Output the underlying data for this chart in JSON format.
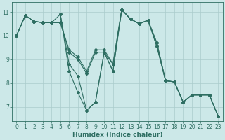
{
  "xlabel": "Humidex (Indice chaleur)",
  "xlim": [
    -0.5,
    23.5
  ],
  "ylim": [
    6.4,
    11.4
  ],
  "yticks": [
    7,
    8,
    9,
    10,
    11
  ],
  "xticks": [
    0,
    1,
    2,
    3,
    4,
    5,
    6,
    7,
    8,
    9,
    10,
    11,
    12,
    13,
    14,
    15,
    16,
    17,
    18,
    19,
    20,
    21,
    22,
    23
  ],
  "bg_color": "#cce8e8",
  "grid_color": "#aacccc",
  "line_color": "#2e6e62",
  "lines": [
    {
      "x": [
        0,
        1,
        2,
        3,
        4,
        5,
        5,
        6,
        7,
        8,
        9,
        10,
        11,
        12,
        13,
        14,
        15,
        16,
        17,
        18,
        19,
        20,
        21,
        22,
        23
      ],
      "y": [
        10.0,
        10.85,
        10.6,
        10.55,
        10.55,
        10.55,
        10.9,
        8.5,
        7.6,
        6.85,
        7.2,
        9.3,
        8.5,
        11.1,
        10.7,
        10.5,
        10.65,
        9.7,
        8.1,
        8.05,
        7.2,
        7.5,
        7.5,
        7.5,
        6.6
      ]
    },
    {
      "x": [
        0,
        1,
        2,
        3,
        4,
        5,
        6,
        7,
        8,
        9,
        10,
        11,
        12,
        13,
        14,
        15,
        16,
        17,
        18,
        19,
        20,
        21,
        22,
        23
      ],
      "y": [
        10.0,
        10.85,
        10.6,
        10.55,
        10.55,
        10.55,
        9.3,
        9.0,
        8.4,
        9.3,
        9.3,
        8.8,
        11.1,
        10.7,
        10.5,
        10.65,
        9.55,
        8.1,
        8.05,
        7.2,
        7.5,
        7.5,
        7.5,
        6.6
      ]
    },
    {
      "x": [
        0,
        1,
        2,
        3,
        4,
        5,
        6,
        7,
        8,
        9,
        10,
        11,
        12,
        13,
        14,
        15,
        16,
        17,
        18,
        19,
        20,
        21,
        22,
        23
      ],
      "y": [
        10.0,
        10.85,
        10.6,
        10.55,
        10.55,
        10.9,
        8.8,
        8.3,
        6.85,
        7.2,
        9.3,
        8.5,
        11.1,
        10.7,
        10.5,
        10.65,
        9.7,
        8.1,
        8.05,
        7.2,
        7.5,
        7.5,
        7.5,
        6.6
      ]
    },
    {
      "x": [
        0,
        1,
        2,
        3,
        4,
        5,
        6,
        7,
        8,
        9,
        10,
        11,
        12,
        13,
        14,
        15,
        16,
        17,
        18,
        19,
        20,
        21,
        22,
        23
      ],
      "y": [
        10.0,
        10.85,
        10.6,
        10.55,
        10.55,
        10.55,
        9.4,
        9.1,
        8.5,
        9.4,
        9.4,
        8.8,
        11.1,
        10.7,
        10.5,
        10.65,
        9.55,
        8.1,
        8.05,
        7.2,
        7.5,
        7.5,
        7.5,
        6.6
      ]
    }
  ],
  "xlabel_fontsize": 6.5,
  "tick_fontsize": 5.5
}
